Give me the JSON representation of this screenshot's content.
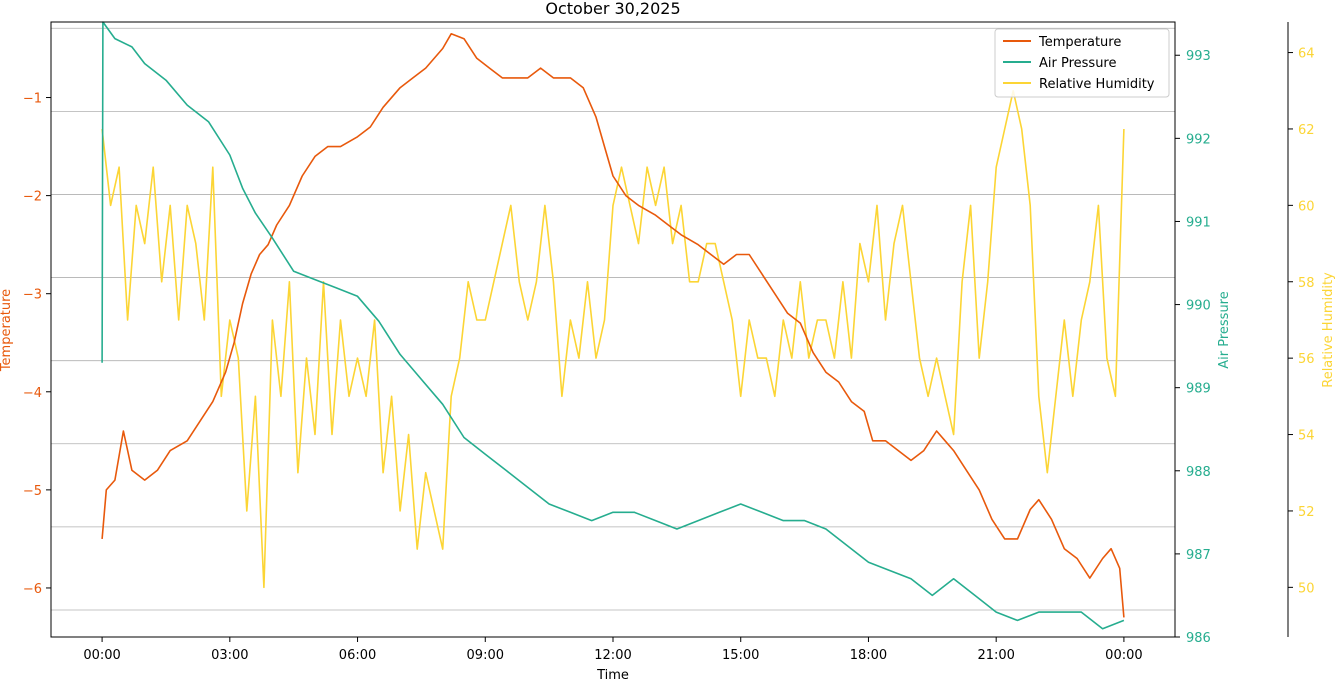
{
  "chart_data": {
    "type": "line",
    "title": "October 30,2025",
    "xlabel": "Time",
    "x_ticks": [
      "00:00",
      "03:00",
      "06:00",
      "09:00",
      "12:00",
      "15:00",
      "18:00",
      "21:00",
      "00:00"
    ],
    "x_range_hours": [
      -1.2,
      25.2
    ],
    "grid": "horizontal lines at right (Air Pressure) axis, offset",
    "legend_position": "top-right",
    "axes": [
      {
        "name": "Temperature",
        "label": "Temperature",
        "side": "left",
        "range": [
          -6.5,
          -0.23
        ],
        "ticks": [
          -1,
          -2,
          -3,
          -4,
          -5,
          -6
        ],
        "color": "#e8590c"
      },
      {
        "name": "Air Pressure",
        "label": "Air Pressure",
        "side": "right",
        "range": [
          986,
          993.4
        ],
        "ticks": [
          986,
          987,
          988,
          989,
          990,
          991,
          992,
          993
        ],
        "color": "#26ad8f"
      },
      {
        "name": "Relative Humidity",
        "label": "Relative Humidity",
        "side": "right-outer",
        "range": [
          48.7,
          64.8
        ],
        "ticks": [
          50,
          52,
          54,
          56,
          58,
          60,
          62,
          64
        ],
        "color": "#fcd535"
      }
    ],
    "series": [
      {
        "name": "Temperature",
        "axis": "left",
        "color": "#e8590c",
        "points": [
          [
            0,
            -5.5
          ],
          [
            0.1,
            -5.0
          ],
          [
            0.3,
            -4.9
          ],
          [
            0.5,
            -4.4
          ],
          [
            0.7,
            -4.8
          ],
          [
            1,
            -4.9
          ],
          [
            1.3,
            -4.8
          ],
          [
            1.6,
            -4.6
          ],
          [
            2,
            -4.5
          ],
          [
            2.3,
            -4.3
          ],
          [
            2.6,
            -4.1
          ],
          [
            2.9,
            -3.8
          ],
          [
            3.1,
            -3.5
          ],
          [
            3.3,
            -3.1
          ],
          [
            3.5,
            -2.8
          ],
          [
            3.7,
            -2.6
          ],
          [
            3.9,
            -2.5
          ],
          [
            4.1,
            -2.3
          ],
          [
            4.4,
            -2.1
          ],
          [
            4.7,
            -1.8
          ],
          [
            5,
            -1.6
          ],
          [
            5.3,
            -1.5
          ],
          [
            5.6,
            -1.5
          ],
          [
            6,
            -1.4
          ],
          [
            6.3,
            -1.3
          ],
          [
            6.6,
            -1.1
          ],
          [
            7,
            -0.9
          ],
          [
            7.3,
            -0.8
          ],
          [
            7.6,
            -0.7
          ],
          [
            8,
            -0.5
          ],
          [
            8.2,
            -0.35
          ],
          [
            8.5,
            -0.4
          ],
          [
            8.8,
            -0.6
          ],
          [
            9.1,
            -0.7
          ],
          [
            9.4,
            -0.8
          ],
          [
            9.7,
            -0.8
          ],
          [
            10,
            -0.8
          ],
          [
            10.3,
            -0.7
          ],
          [
            10.6,
            -0.8
          ],
          [
            11,
            -0.8
          ],
          [
            11.3,
            -0.9
          ],
          [
            11.6,
            -1.2
          ],
          [
            11.8,
            -1.5
          ],
          [
            12,
            -1.8
          ],
          [
            12.3,
            -2.0
          ],
          [
            12.6,
            -2.1
          ],
          [
            13,
            -2.2
          ],
          [
            13.3,
            -2.3
          ],
          [
            13.6,
            -2.4
          ],
          [
            14,
            -2.5
          ],
          [
            14.3,
            -2.6
          ],
          [
            14.6,
            -2.7
          ],
          [
            14.9,
            -2.6
          ],
          [
            15.2,
            -2.6
          ],
          [
            15.5,
            -2.8
          ],
          [
            15.8,
            -3.0
          ],
          [
            16.1,
            -3.2
          ],
          [
            16.4,
            -3.3
          ],
          [
            16.7,
            -3.6
          ],
          [
            17,
            -3.8
          ],
          [
            17.3,
            -3.9
          ],
          [
            17.6,
            -4.1
          ],
          [
            17.9,
            -4.2
          ],
          [
            18.1,
            -4.5
          ],
          [
            18.4,
            -4.5
          ],
          [
            18.7,
            -4.6
          ],
          [
            19,
            -4.7
          ],
          [
            19.3,
            -4.6
          ],
          [
            19.6,
            -4.4
          ],
          [
            19.8,
            -4.5
          ],
          [
            20,
            -4.6
          ],
          [
            20.3,
            -4.8
          ],
          [
            20.6,
            -5.0
          ],
          [
            20.9,
            -5.3
          ],
          [
            21.2,
            -5.5
          ],
          [
            21.5,
            -5.5
          ],
          [
            21.8,
            -5.2
          ],
          [
            22,
            -5.1
          ],
          [
            22.3,
            -5.3
          ],
          [
            22.6,
            -5.6
          ],
          [
            22.9,
            -5.7
          ],
          [
            23.2,
            -5.9
          ],
          [
            23.5,
            -5.7
          ],
          [
            23.7,
            -5.6
          ],
          [
            23.9,
            -5.8
          ],
          [
            24,
            -6.3
          ]
        ]
      },
      {
        "name": "Air Pressure",
        "axis": "right",
        "color": "#26ad8f",
        "points": [
          [
            0,
            989.3
          ],
          [
            0.02,
            993.4
          ],
          [
            0.3,
            993.2
          ],
          [
            0.7,
            993.1
          ],
          [
            1,
            992.9
          ],
          [
            1.5,
            992.7
          ],
          [
            2,
            992.4
          ],
          [
            2.5,
            992.2
          ],
          [
            3,
            991.8
          ],
          [
            3.3,
            991.4
          ],
          [
            3.6,
            991.1
          ],
          [
            4,
            990.8
          ],
          [
            4.5,
            990.4
          ],
          [
            5,
            990.3
          ],
          [
            5.5,
            990.2
          ],
          [
            6,
            990.1
          ],
          [
            6.5,
            989.8
          ],
          [
            7,
            989.4
          ],
          [
            7.5,
            989.1
          ],
          [
            8,
            988.8
          ],
          [
            8.5,
            988.4
          ],
          [
            9,
            988.2
          ],
          [
            9.5,
            988
          ],
          [
            10,
            987.8
          ],
          [
            10.5,
            987.6
          ],
          [
            11,
            987.5
          ],
          [
            11.5,
            987.4
          ],
          [
            12,
            987.5
          ],
          [
            12.5,
            987.5
          ],
          [
            13,
            987.4
          ],
          [
            13.5,
            987.3
          ],
          [
            14,
            987.4
          ],
          [
            14.5,
            987.5
          ],
          [
            15,
            987.6
          ],
          [
            15.5,
            987.5
          ],
          [
            16,
            987.4
          ],
          [
            16.5,
            987.4
          ],
          [
            17,
            987.3
          ],
          [
            17.5,
            987.1
          ],
          [
            18,
            986.9
          ],
          [
            18.5,
            986.8
          ],
          [
            19,
            986.7
          ],
          [
            19.5,
            986.5
          ],
          [
            20,
            986.7
          ],
          [
            20.5,
            986.5
          ],
          [
            21,
            986.3
          ],
          [
            21.5,
            986.2
          ],
          [
            22,
            986.3
          ],
          [
            22.5,
            986.3
          ],
          [
            23,
            986.3
          ],
          [
            23.5,
            986.1
          ],
          [
            24,
            986.2
          ]
        ]
      },
      {
        "name": "Relative Humidity",
        "axis": "right-outer",
        "color": "#fcd535",
        "points": [
          [
            0,
            62
          ],
          [
            0.2,
            60
          ],
          [
            0.4,
            61
          ],
          [
            0.6,
            57
          ],
          [
            0.8,
            60
          ],
          [
            1,
            59
          ],
          [
            1.2,
            61
          ],
          [
            1.4,
            58
          ],
          [
            1.6,
            60
          ],
          [
            1.8,
            57
          ],
          [
            2,
            60
          ],
          [
            2.2,
            59
          ],
          [
            2.4,
            57
          ],
          [
            2.6,
            61
          ],
          [
            2.8,
            55
          ],
          [
            3,
            57
          ],
          [
            3.2,
            56
          ],
          [
            3.4,
            52
          ],
          [
            3.6,
            55
          ],
          [
            3.8,
            50
          ],
          [
            4,
            57
          ],
          [
            4.2,
            55
          ],
          [
            4.4,
            58
          ],
          [
            4.6,
            53
          ],
          [
            4.8,
            56
          ],
          [
            5,
            54
          ],
          [
            5.2,
            58
          ],
          [
            5.4,
            54
          ],
          [
            5.6,
            57
          ],
          [
            5.8,
            55
          ],
          [
            6,
            56
          ],
          [
            6.2,
            55
          ],
          [
            6.4,
            57
          ],
          [
            6.6,
            53
          ],
          [
            6.8,
            55
          ],
          [
            7,
            52
          ],
          [
            7.2,
            54
          ],
          [
            7.4,
            51
          ],
          [
            7.6,
            53
          ],
          [
            7.8,
            52
          ],
          [
            8,
            51
          ],
          [
            8.2,
            55
          ],
          [
            8.4,
            56
          ],
          [
            8.6,
            58
          ],
          [
            8.8,
            57
          ],
          [
            9,
            57
          ],
          [
            9.2,
            58
          ],
          [
            9.4,
            59
          ],
          [
            9.6,
            60
          ],
          [
            9.8,
            58
          ],
          [
            10,
            57
          ],
          [
            10.2,
            58
          ],
          [
            10.4,
            60
          ],
          [
            10.6,
            58
          ],
          [
            10.8,
            55
          ],
          [
            11,
            57
          ],
          [
            11.2,
            56
          ],
          [
            11.4,
            58
          ],
          [
            11.6,
            56
          ],
          [
            11.8,
            57
          ],
          [
            12,
            60
          ],
          [
            12.2,
            61
          ],
          [
            12.4,
            60
          ],
          [
            12.6,
            59
          ],
          [
            12.8,
            61
          ],
          [
            13,
            60
          ],
          [
            13.2,
            61
          ],
          [
            13.4,
            59
          ],
          [
            13.6,
            60
          ],
          [
            13.8,
            58
          ],
          [
            14,
            58
          ],
          [
            14.2,
            59
          ],
          [
            14.4,
            59
          ],
          [
            14.6,
            58
          ],
          [
            14.8,
            57
          ],
          [
            15,
            55
          ],
          [
            15.2,
            57
          ],
          [
            15.4,
            56
          ],
          [
            15.6,
            56
          ],
          [
            15.8,
            55
          ],
          [
            16,
            57
          ],
          [
            16.2,
            56
          ],
          [
            16.4,
            58
          ],
          [
            16.6,
            56
          ],
          [
            16.8,
            57
          ],
          [
            17,
            57
          ],
          [
            17.2,
            56
          ],
          [
            17.4,
            58
          ],
          [
            17.6,
            56
          ],
          [
            17.8,
            59
          ],
          [
            18,
            58
          ],
          [
            18.2,
            60
          ],
          [
            18.4,
            57
          ],
          [
            18.6,
            59
          ],
          [
            18.8,
            60
          ],
          [
            19,
            58
          ],
          [
            19.2,
            56
          ],
          [
            19.4,
            55
          ],
          [
            19.6,
            56
          ],
          [
            19.8,
            55
          ],
          [
            20,
            54
          ],
          [
            20.2,
            58
          ],
          [
            20.4,
            60
          ],
          [
            20.6,
            56
          ],
          [
            20.8,
            58
          ],
          [
            21,
            61
          ],
          [
            21.2,
            62
          ],
          [
            21.4,
            63
          ],
          [
            21.6,
            62
          ],
          [
            21.8,
            60
          ],
          [
            22,
            55
          ],
          [
            22.2,
            53
          ],
          [
            22.4,
            55
          ],
          [
            22.6,
            57
          ],
          [
            22.8,
            55
          ],
          [
            23,
            57
          ],
          [
            23.2,
            58
          ],
          [
            23.4,
            60
          ],
          [
            23.6,
            56
          ],
          [
            23.8,
            55
          ],
          [
            24,
            62
          ]
        ]
      }
    ]
  }
}
